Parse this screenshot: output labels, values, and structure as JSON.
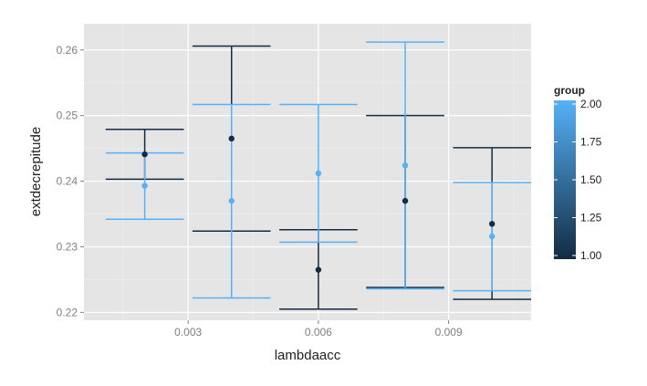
{
  "chart_data": {
    "type": "errorbar",
    "xlabel": "lambdaacc",
    "ylabel": "extdecrepitude",
    "xlim": [
      0.0006,
      0.0109
    ],
    "ylim": [
      0.2188,
      0.264
    ],
    "x_ticks": [
      0.003,
      0.006,
      0.009
    ],
    "x_tick_labels": [
      "0.003",
      "0.006",
      "0.009"
    ],
    "y_ticks": [
      0.22,
      0.23,
      0.24,
      0.25,
      0.26
    ],
    "y_tick_labels": [
      "0.22",
      "0.23",
      "0.24",
      "0.25",
      "0.26"
    ],
    "grid": true,
    "legend": {
      "title": "group",
      "placement": "right",
      "type": "colorbar",
      "range": [
        1.0,
        2.0
      ],
      "ticks": [
        1.0,
        1.25,
        1.5,
        1.75,
        2.0
      ],
      "tick_labels": [
        "1.00",
        "1.25",
        "1.50",
        "1.75",
        "2.00"
      ],
      "low_color": "#132b43",
      "high_color": "#56b1f7"
    },
    "series": [
      {
        "group": 1,
        "color": "#132b43",
        "points": [
          {
            "x": 0.002,
            "y": 0.2441,
            "ymin": 0.2403,
            "ymax": 0.2479
          },
          {
            "x": 0.004,
            "y": 0.2465,
            "ymin": 0.2324,
            "ymax": 0.2606
          },
          {
            "x": 0.006,
            "y": 0.2265,
            "ymin": 0.2205,
            "ymax": 0.2326
          },
          {
            "x": 0.008,
            "y": 0.237,
            "ymin": 0.2238,
            "ymax": 0.25
          },
          {
            "x": 0.01,
            "y": 0.2335,
            "ymin": 0.222,
            "ymax": 0.2451
          }
        ]
      },
      {
        "group": 2,
        "color": "#56b1f7",
        "points": [
          {
            "x": 0.002,
            "y": 0.2393,
            "ymin": 0.2342,
            "ymax": 0.2443
          },
          {
            "x": 0.004,
            "y": 0.237,
            "ymin": 0.2222,
            "ymax": 0.2517
          },
          {
            "x": 0.006,
            "y": 0.2412,
            "ymin": 0.2307,
            "ymax": 0.2517
          },
          {
            "x": 0.008,
            "y": 0.2424,
            "ymin": 0.2236,
            "ymax": 0.2612
          },
          {
            "x": 0.01,
            "y": 0.2316,
            "ymin": 0.2233,
            "ymax": 0.2398
          }
        ]
      }
    ],
    "panel_color": "#e5e5e5",
    "grid_color": "#ffffff"
  }
}
